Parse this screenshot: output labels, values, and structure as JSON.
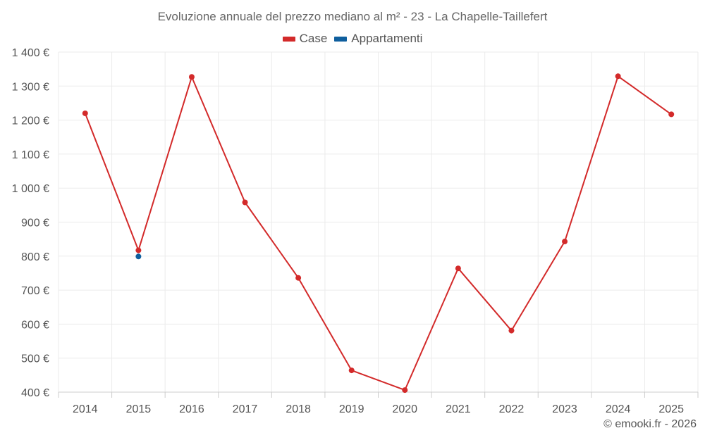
{
  "chart_data": {
    "type": "line",
    "title": "Evoluzione annuale del prezzo mediano al m² - 23 - La Chapelle-Taillefert",
    "categories": [
      "2014",
      "2015",
      "2016",
      "2017",
      "2018",
      "2019",
      "2020",
      "2021",
      "2022",
      "2023",
      "2024",
      "2025"
    ],
    "y_tick_labels": [
      "400 €",
      "500 €",
      "600 €",
      "700 €",
      "800 €",
      "900 €",
      "1 000 €",
      "1 100 €",
      "1 200 €",
      "1 300 €",
      "1 400 €"
    ],
    "y_ticks": [
      400,
      500,
      600,
      700,
      800,
      900,
      1000,
      1100,
      1200,
      1300,
      1400
    ],
    "ylim": [
      400,
      1400
    ],
    "xlabel": "",
    "ylabel": "",
    "legend_position": "top-center",
    "grid": true,
    "series": [
      {
        "name": "Case",
        "color": "#d32a2a",
        "values": [
          1220,
          817,
          1327,
          958,
          736,
          464,
          406,
          764,
          581,
          843,
          1329,
          1217
        ]
      },
      {
        "name": "Appartamenti",
        "color": "#0f5f9e",
        "values": [
          null,
          799,
          null,
          null,
          null,
          null,
          null,
          null,
          null,
          null,
          null,
          null
        ]
      }
    ]
  },
  "credit": "© emooki.fr - 2026"
}
